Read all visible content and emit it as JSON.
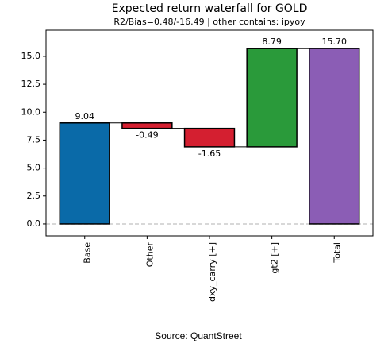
{
  "chart_data": {
    "type": "waterfall",
    "title": "Expected return waterfall for GOLD",
    "subtitle": "R2/Bias=0.48/-16.49 | other contains: ipyoy",
    "source": "Source: QuantStreet",
    "categories": [
      "Base",
      "Other",
      "dxy_carry [+]",
      "gt2 [+]",
      "Total"
    ],
    "values": [
      9.04,
      -0.49,
      -1.65,
      8.79,
      15.7
    ],
    "value_labels": [
      "9.04",
      "-0.49",
      "-1.65",
      "8.79",
      "15.70"
    ],
    "colors": [
      "#0a6aa8",
      "#d41f30",
      "#d41f30",
      "#2a9a3a",
      "#8b5db5"
    ],
    "ylim": [
      -1.07,
      17.34
    ],
    "yticks": [
      {
        "value": 0,
        "label": "0.0"
      },
      2.5,
      {
        "value": 5,
        "label": "5.0"
      },
      7.5,
      {
        "value": 10,
        "label": "10.0"
      },
      12.5,
      {
        "value": 15,
        "label": "15.0"
      }
    ]
  }
}
